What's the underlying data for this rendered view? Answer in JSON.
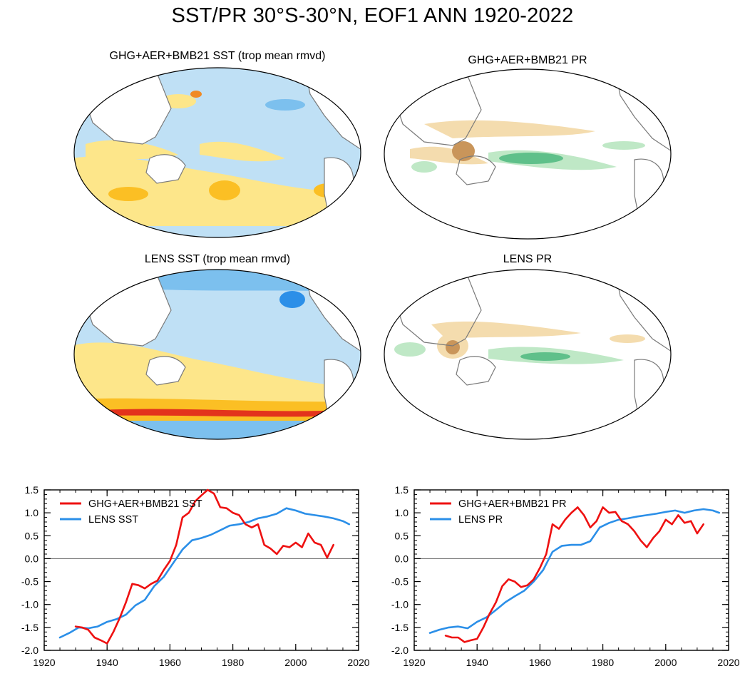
{
  "figure": {
    "title": "SST/PR 30°S-30°N, EOF1 ANN 1920-2022"
  },
  "maps": [
    {
      "id": "ghg-sst",
      "title": "GHG+AER+BMB21 SST (trop mean rmvd)",
      "field": "SST"
    },
    {
      "id": "ghg-pr",
      "title": "GHG+AER+BMB21 PR",
      "field": "PR"
    },
    {
      "id": "lens-sst",
      "title": "LENS SST (trop mean rmvd)",
      "field": "SST"
    },
    {
      "id": "lens-pr",
      "title": "LENS PR",
      "field": "PR"
    }
  ],
  "colors": {
    "ghg": "#ee1111",
    "lens": "#2b8fe8",
    "sst_warm": "#fde68a",
    "sst_warm2": "#fbbf24",
    "sst_cool": "#bfe0f5",
    "sst_cool2": "#7cc0ee",
    "pr_dry": "#f4dcae",
    "pr_dry2": "#c9955a",
    "pr_wet": "#bfe8c6",
    "pr_wet2": "#5fc08a",
    "land": "#ffffff",
    "coast": "#7a7a7a"
  },
  "chart_data": [
    {
      "type": "line",
      "id": "sst-pc",
      "xlim": [
        1920,
        2020
      ],
      "ylim": [
        -2.0,
        1.5
      ],
      "xticks": [
        1920,
        1940,
        1960,
        1980,
        2000,
        2020
      ],
      "yticks": [
        "1.5",
        "1.0",
        "0.5",
        "0.0",
        "-0.5",
        "-1.0",
        "-1.5",
        "-2.0"
      ],
      "legend_position": "top-left",
      "series": [
        {
          "name": "GHG+AER+BMB21 SST",
          "color": "#ee1111",
          "x": [
            1930,
            1932,
            1934,
            1936,
            1938,
            1940,
            1942,
            1944,
            1946,
            1948,
            1950,
            1952,
            1954,
            1956,
            1958,
            1960,
            1962,
            1964,
            1966,
            1968,
            1970,
            1972,
            1974,
            1976,
            1978,
            1980,
            1982,
            1984,
            1986,
            1988,
            1990,
            1992,
            1994,
            1996,
            1998,
            2000,
            2002,
            2004,
            2006,
            2008,
            2010,
            2012
          ],
          "y": [
            -1.48,
            -1.5,
            -1.55,
            -1.72,
            -1.78,
            -1.85,
            -1.6,
            -1.3,
            -0.95,
            -0.55,
            -0.58,
            -0.65,
            -0.55,
            -0.48,
            -0.25,
            -0.05,
            0.3,
            0.9,
            1.0,
            1.25,
            1.38,
            1.5,
            1.42,
            1.12,
            1.1,
            1.0,
            0.95,
            0.75,
            0.68,
            0.75,
            0.3,
            0.22,
            0.1,
            0.28,
            0.25,
            0.35,
            0.25,
            0.55,
            0.35,
            0.3,
            0.02,
            0.3
          ]
        },
        {
          "name": "LENS SST",
          "color": "#2b8fe8",
          "x": [
            1925,
            1928,
            1931,
            1934,
            1937,
            1940,
            1943,
            1946,
            1949,
            1952,
            1955,
            1958,
            1961,
            1964,
            1967,
            1970,
            1973,
            1976,
            1979,
            1982,
            1985,
            1988,
            1991,
            1994,
            1997,
            2000,
            2003,
            2006,
            2009,
            2012,
            2015,
            2017
          ],
          "y": [
            -1.72,
            -1.62,
            -1.5,
            -1.52,
            -1.48,
            -1.38,
            -1.32,
            -1.22,
            -1.02,
            -0.9,
            -0.6,
            -0.4,
            -0.1,
            0.2,
            0.4,
            0.45,
            0.52,
            0.62,
            0.72,
            0.75,
            0.8,
            0.88,
            0.92,
            0.98,
            1.1,
            1.05,
            0.98,
            0.95,
            0.92,
            0.88,
            0.82,
            0.75
          ]
        }
      ]
    },
    {
      "type": "line",
      "id": "pr-pc",
      "xlim": [
        1920,
        2020
      ],
      "ylim": [
        -2.0,
        1.5
      ],
      "xticks": [
        1920,
        1940,
        1960,
        1980,
        2000,
        2020
      ],
      "yticks": [
        "1.5",
        "1.0",
        "0.5",
        "0.0",
        "-0.5",
        "-1.0",
        "-1.5",
        "-2.0"
      ],
      "legend_position": "top-left",
      "series": [
        {
          "name": "GHG+AER+BMB21 PR",
          "color": "#ee1111",
          "x": [
            1930,
            1932,
            1934,
            1936,
            1938,
            1940,
            1942,
            1944,
            1946,
            1948,
            1950,
            1952,
            1954,
            1956,
            1958,
            1960,
            1962,
            1964,
            1966,
            1968,
            1970,
            1972,
            1974,
            1976,
            1978,
            1980,
            1982,
            1984,
            1986,
            1988,
            1990,
            1992,
            1994,
            1996,
            1998,
            2000,
            2002,
            2004,
            2006,
            2008,
            2010,
            2012
          ],
          "y": [
            -1.68,
            -1.72,
            -1.72,
            -1.82,
            -1.78,
            -1.75,
            -1.5,
            -1.2,
            -0.95,
            -0.6,
            -0.45,
            -0.5,
            -0.62,
            -0.58,
            -0.45,
            -0.2,
            0.1,
            0.75,
            0.65,
            0.85,
            1.0,
            1.12,
            0.95,
            0.68,
            0.82,
            1.12,
            1.0,
            1.02,
            0.82,
            0.75,
            0.6,
            0.4,
            0.25,
            0.45,
            0.6,
            0.85,
            0.75,
            0.95,
            0.78,
            0.82,
            0.55,
            0.75
          ]
        },
        {
          "name": "LENS PR",
          "color": "#2b8fe8",
          "x": [
            1925,
            1928,
            1931,
            1934,
            1937,
            1940,
            1943,
            1946,
            1949,
            1952,
            1955,
            1958,
            1961,
            1964,
            1967,
            1970,
            1973,
            1976,
            1979,
            1982,
            1985,
            1988,
            1991,
            1994,
            1997,
            2000,
            2003,
            2006,
            2009,
            2012,
            2015,
            2017
          ],
          "y": [
            -1.62,
            -1.55,
            -1.5,
            -1.48,
            -1.52,
            -1.38,
            -1.28,
            -1.12,
            -0.95,
            -0.82,
            -0.7,
            -0.5,
            -0.25,
            0.15,
            0.28,
            0.3,
            0.3,
            0.38,
            0.68,
            0.78,
            0.85,
            0.88,
            0.92,
            0.95,
            0.98,
            1.02,
            1.05,
            1.0,
            1.05,
            1.08,
            1.05,
            1.0
          ]
        }
      ]
    }
  ]
}
